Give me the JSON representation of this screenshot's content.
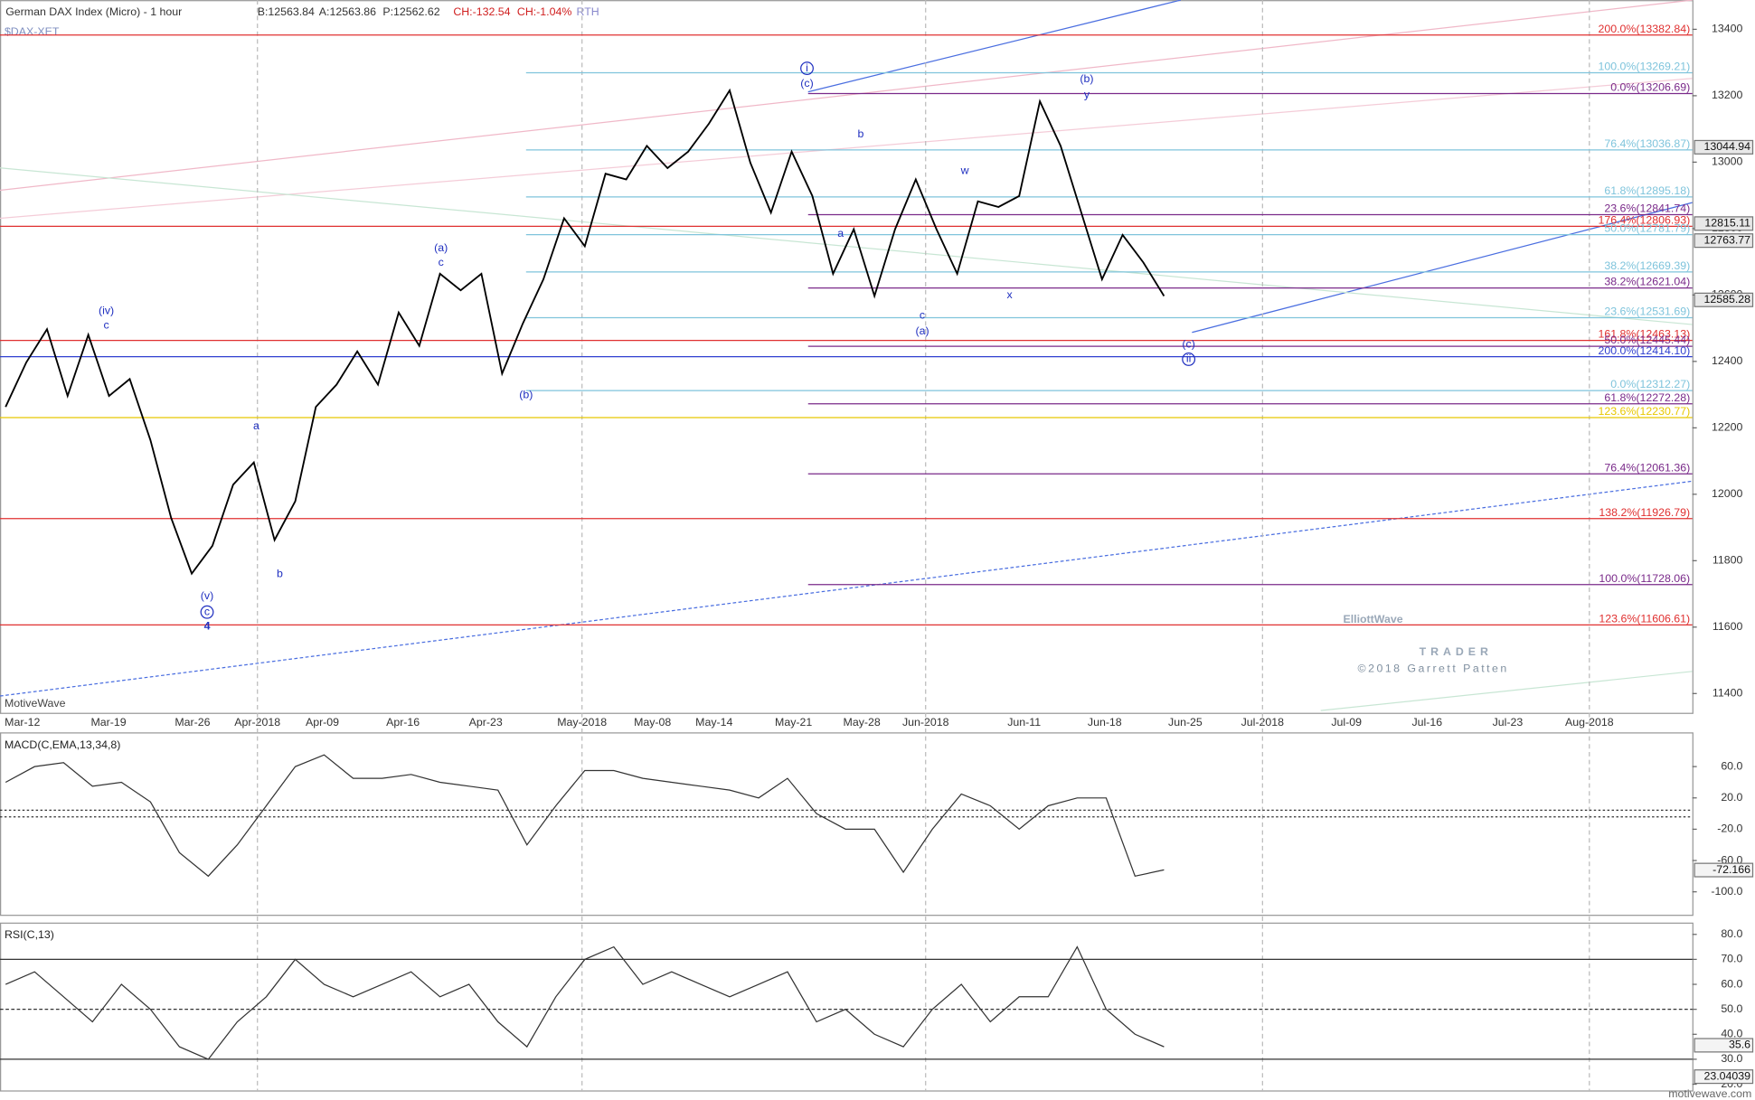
{
  "header": {
    "title": "German DAX Index (Micro) - 1 hour",
    "bid": "B:12563.84",
    "ask": "A:12563.86",
    "price": "P:12562.62",
    "change": "CH:-132.54",
    "change_pct": "CH:-1.04%",
    "session": "RTH",
    "symbol": "$DAX-XET"
  },
  "x_axis_labels": [
    "Mar-12",
    "Mar-19",
    "Mar-26",
    "Apr-2018",
    "Apr-09",
    "Apr-16",
    "Apr-23",
    "May-2018",
    "May-08",
    "May-14",
    "May-21",
    "May-28",
    "Jun-2018",
    "Jun-11",
    "Jun-18",
    "Jun-25",
    "Jul-2018",
    "Jul-09",
    "Jul-16",
    "Jul-23",
    "Aug-2018"
  ],
  "watermark": {
    "platform": "MotiveWave",
    "logo_top": "ElliottWave",
    "logo_bottom": "TRADER",
    "copyright": "©2018 Garrett Patten",
    "site": "motivewave.com"
  },
  "chart_data": [
    {
      "type": "line",
      "ylim": [
        11342,
        13488
      ],
      "yticks": [
        13400,
        13200,
        13000,
        12800,
        12600,
        12400,
        12200,
        12000,
        11800,
        11600,
        11400
      ],
      "series": [
        {
          "color": "#000000",
          "values": [
            12263,
            12397,
            12497,
            12296,
            12480,
            12296,
            12347,
            12163,
            11929,
            11761,
            11845,
            12029,
            12096,
            11862,
            11979,
            12263,
            12330,
            12430,
            12330,
            12547,
            12447,
            12664,
            12614,
            12664,
            12363,
            12514,
            12647,
            12831,
            12747,
            12965,
            12948,
            13049,
            12982,
            13032,
            13116,
            13216,
            12998,
            12848,
            13032,
            12898,
            12664,
            12798,
            12597,
            12798,
            12948,
            12798,
            12664,
            12882,
            12865,
            12898,
            13183,
            13049,
            12848,
            12647,
            12781,
            12698,
            12597
          ]
        }
      ],
      "levels": [
        {
          "label": "200.0%(13382.84)",
          "value": 13382.84,
          "color": "#e03030"
        },
        {
          "label": "100.0%(13269.21)",
          "value": 13269.21,
          "color": "#7fc4dc"
        },
        {
          "label": "0.0%(13206.69)",
          "value": 13206.69,
          "color": "#7a2a8a"
        },
        {
          "label": "76.4%(13036.87)",
          "value": 13036.87,
          "color": "#7fc4dc"
        },
        {
          "label": "61.8%(12895.18)",
          "value": 12895.18,
          "color": "#7fc4dc"
        },
        {
          "label": "23.6%(12841.74)",
          "value": 12841.74,
          "color": "#7a2a8a"
        },
        {
          "label": "176.4%(12806.93)",
          "value": 12806.93,
          "color": "#e03030"
        },
        {
          "label": "50.0%(12781.79)",
          "value": 12781.79,
          "color": "#7fc4dc"
        },
        {
          "label": "38.2%(12669.39)",
          "value": 12669.39,
          "color": "#7fc4dc"
        },
        {
          "label": "38.2%(12621.04)",
          "value": 12621.04,
          "color": "#7a2a8a"
        },
        {
          "label": "23.6%(12531.69)",
          "value": 12531.69,
          "color": "#7fc4dc"
        },
        {
          "label": "161.8%(12463.13)",
          "value": 12463.13,
          "color": "#e03030"
        },
        {
          "label": "50.0%(12445.44)",
          "value": 12445.44,
          "color": "#7a2a8a"
        },
        {
          "label": "200.0%(12414.10)",
          "value": 12414.1,
          "color": "#3040d0"
        },
        {
          "label": "0.0%(12312.27)",
          "value": 12312.27,
          "color": "#7fc4dc"
        },
        {
          "label": "61.8%(12272.28)",
          "value": 12272.28,
          "color": "#7a2a8a"
        },
        {
          "label": "123.6%(12230.77)",
          "value": 12230.77,
          "color": "#e8c800"
        },
        {
          "label": "76.4%(12061.36)",
          "value": 12061.36,
          "color": "#7a2a8a"
        },
        {
          "label": "138.2%(11926.79)",
          "value": 11926.79,
          "color": "#e03030"
        },
        {
          "label": "100.0%(11728.06)",
          "value": 11728.06,
          "color": "#7a2a8a"
        },
        {
          "label": "123.6%(11606.61)",
          "value": 11606.61,
          "color": "#e03030"
        }
      ],
      "price_tags": [
        13044.94,
        12815.11,
        12763.77,
        12585.28
      ],
      "wave_labels": [
        "(iv)",
        "c",
        "(v)",
        "c",
        "4",
        "a",
        "b",
        "(a)",
        "c",
        "(b)",
        "i",
        "(c)",
        "b",
        "a",
        "c",
        "(a)",
        "w",
        "x",
        "(b)",
        "y",
        "(c)",
        "ii"
      ]
    },
    {
      "type": "line",
      "title": "MACD(C,EMA,13,34,8)",
      "ylim": [
        -130,
        103
      ],
      "yticks": [
        {
          "value": 60,
          "label": "60.0"
        },
        {
          "value": 20,
          "label": "20.0"
        },
        {
          "value": -20,
          "label": "-20.0"
        },
        {
          "value": -60,
          "label": "-60.0"
        },
        {
          "value": -100,
          "label": "-100.0"
        }
      ],
      "series": [
        {
          "color": "#333333",
          "values": [
            40,
            60,
            65,
            35,
            40,
            15,
            -50,
            -80,
            -40,
            10,
            60,
            75,
            45,
            45,
            50,
            40,
            35,
            30,
            -40,
            10,
            55,
            55,
            45,
            40,
            35,
            30,
            20,
            45,
            0,
            -20,
            -20,
            -75,
            -20,
            25,
            10,
            -20,
            10,
            20,
            20,
            -80,
            -72
          ]
        }
      ],
      "value_tags": [
        -72.166
      ]
    },
    {
      "type": "line",
      "title": "RSI(C,13)",
      "ylim": [
        17.3,
        84.5
      ],
      "yticks": [
        {
          "value": 80,
          "label": "80.0"
        },
        {
          "value": 70,
          "label": "70.0"
        },
        {
          "value": 60,
          "label": "60.0"
        },
        {
          "value": 50,
          "label": "50.0"
        },
        {
          "value": 40,
          "label": "40.0"
        },
        {
          "value": 30,
          "label": "30.0"
        },
        {
          "value": 20,
          "label": "20.0"
        }
      ],
      "series": [
        {
          "color": "#333333",
          "values": [
            60,
            65,
            55,
            45,
            60,
            50,
            35,
            30,
            45,
            55,
            70,
            60,
            55,
            60,
            65,
            55,
            60,
            45,
            35,
            55,
            70,
            75,
            60,
            65,
            60,
            55,
            60,
            65,
            45,
            50,
            40,
            35,
            50,
            60,
            45,
            55,
            55,
            75,
            50,
            40,
            35
          ]
        }
      ],
      "value_tags": [
        35.6,
        23.04039
      ]
    }
  ]
}
